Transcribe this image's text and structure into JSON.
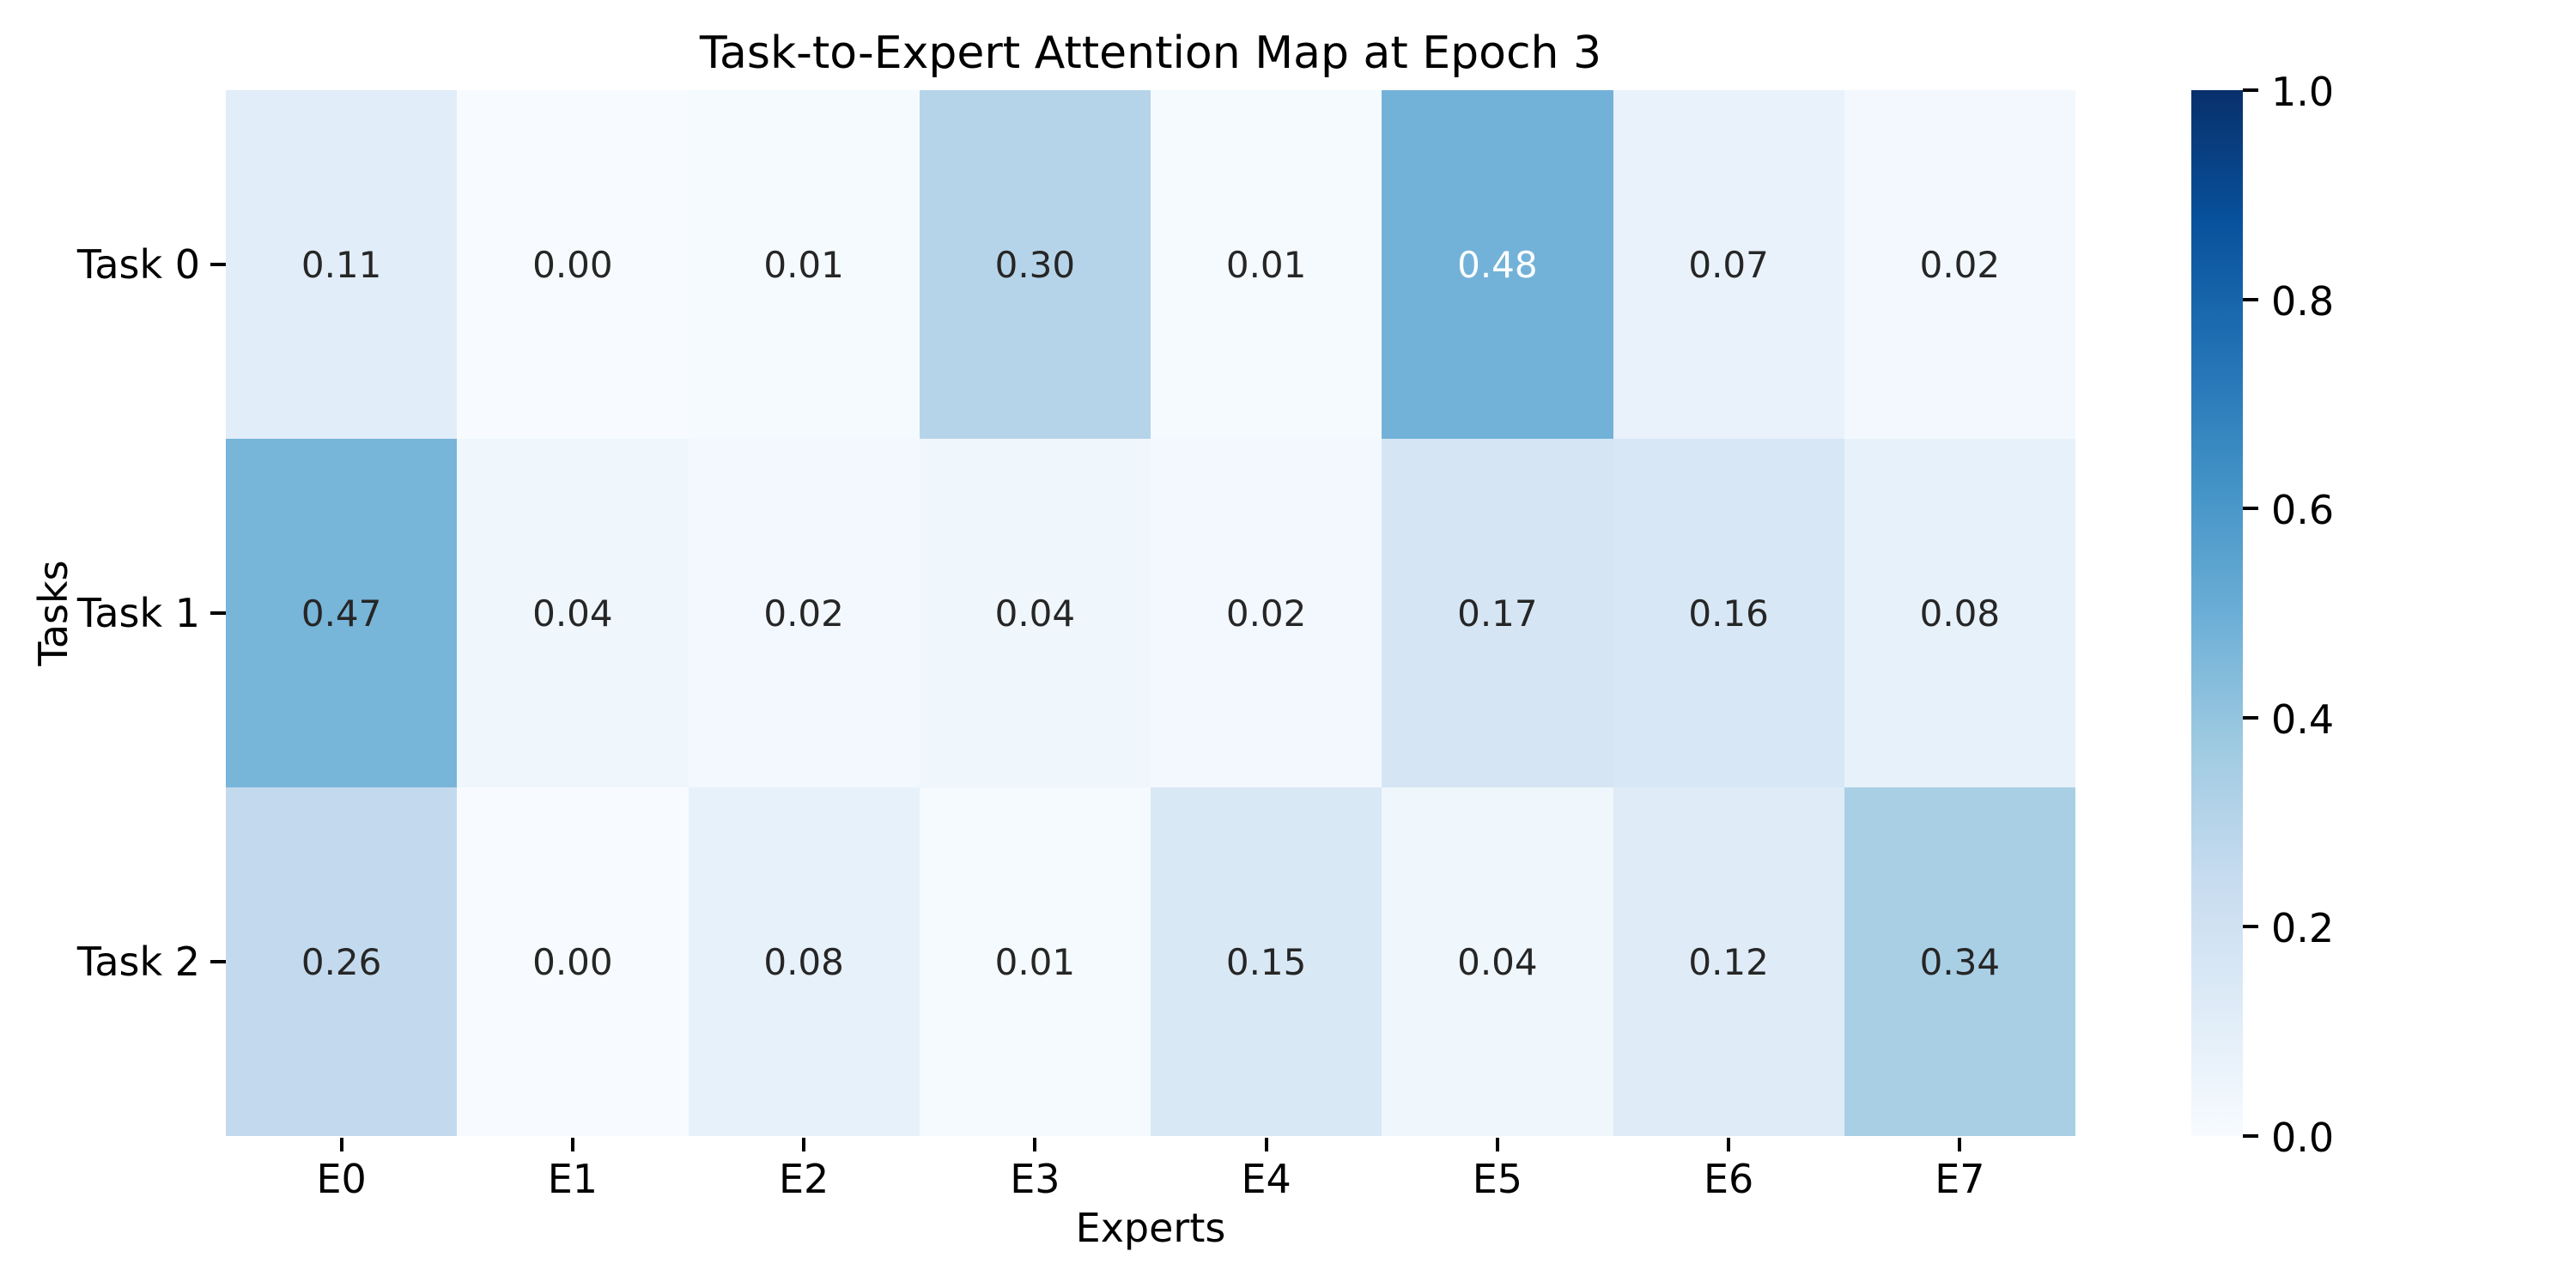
{
  "title": "Task-to-Expert Attention Map at Epoch 3",
  "colors": {
    "background": "#ffffff",
    "text": "#000000",
    "annotation_dark": "#262626",
    "annotation_light": "#ffffff"
  },
  "chart_data": {
    "type": "heatmap",
    "title": "Task-to-Expert Attention Map at Epoch 3",
    "xlabel": "Experts",
    "ylabel": "Tasks",
    "x_categories": [
      "E0",
      "E1",
      "E2",
      "E3",
      "E4",
      "E5",
      "E6",
      "E7"
    ],
    "y_categories": [
      "Task 0",
      "Task 1",
      "Task 2"
    ],
    "values": [
      [
        0.11,
        0.0,
        0.01,
        0.3,
        0.01,
        0.48,
        0.07,
        0.02
      ],
      [
        0.47,
        0.04,
        0.02,
        0.04,
        0.02,
        0.17,
        0.16,
        0.08
      ],
      [
        0.26,
        0.0,
        0.08,
        0.01,
        0.15,
        0.04,
        0.12,
        0.34
      ]
    ],
    "vmin": 0.0,
    "vmax": 1.0,
    "annotation_decimals": 2,
    "colormap": "Blues",
    "colormap_stops": [
      {
        "pos": 0.0,
        "color": "#f7fbff"
      },
      {
        "pos": 0.125,
        "color": "#deebf7"
      },
      {
        "pos": 0.25,
        "color": "#c6dbef"
      },
      {
        "pos": 0.375,
        "color": "#9ecae1"
      },
      {
        "pos": 0.5,
        "color": "#6baed6"
      },
      {
        "pos": 0.625,
        "color": "#4292c6"
      },
      {
        "pos": 0.75,
        "color": "#2171b5"
      },
      {
        "pos": 0.875,
        "color": "#08519c"
      },
      {
        "pos": 1.0,
        "color": "#08306b"
      }
    ],
    "colorbar_ticks": [
      0.0,
      0.2,
      0.4,
      0.6,
      0.8,
      1.0
    ],
    "colorbar_tick_decimals": 1,
    "grid": false,
    "legend": "colorbar-right"
  }
}
